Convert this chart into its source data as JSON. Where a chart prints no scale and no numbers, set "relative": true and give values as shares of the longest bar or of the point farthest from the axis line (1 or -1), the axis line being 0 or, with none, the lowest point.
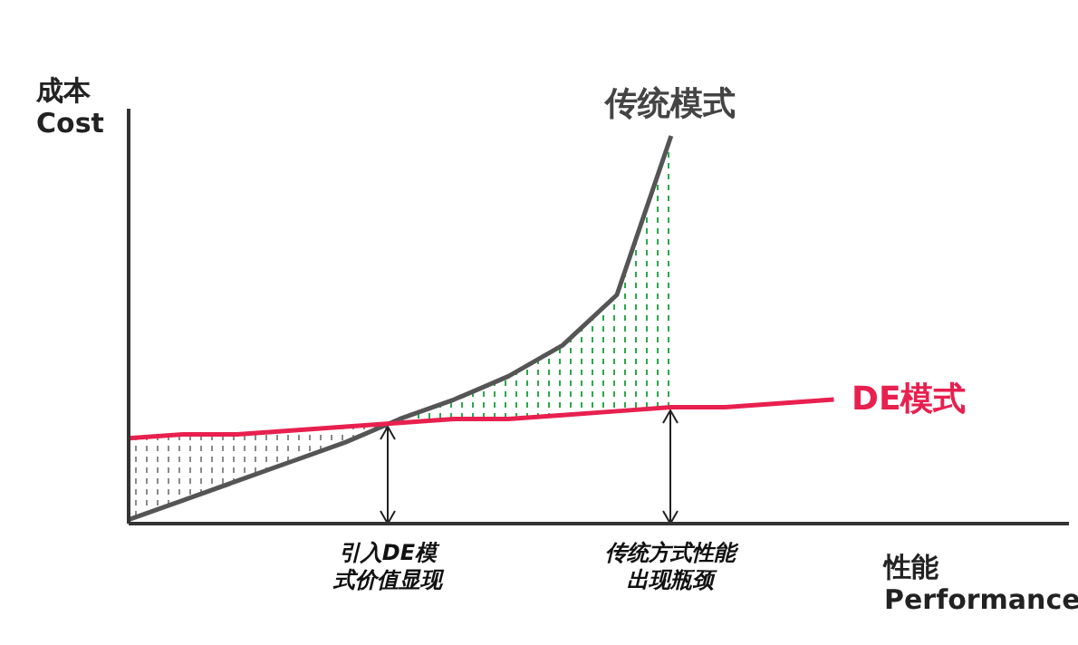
{
  "chart_data": {
    "type": "line",
    "relative": true,
    "xlabel": "性能\nPerformance",
    "ylabel": "成本\nCost",
    "categories": [
      null,
      null,
      null,
      null,
      null,
      null,
      null,
      null,
      null,
      null,
      null,
      null,
      null,
      null
    ],
    "series": [
      {
        "name": "传统模式",
        "color": "#555555",
        "values": [
          0.01,
          0.06,
          0.11,
          0.16,
          0.21,
          0.27,
          0.32,
          0.38,
          0.46,
          0.59,
          1,
          null,
          null,
          null
        ]
      },
      {
        "name": "DE模式",
        "color": "#e8204f",
        "values": [
          0.22,
          0.23,
          0.23,
          0.24,
          0.25,
          0.26,
          0.27,
          0.27,
          0.28,
          0.29,
          0.3,
          0.3,
          0.31,
          0.32
        ],
        "lower": [
          0.01,
          0.06,
          0.11,
          0.16,
          0.21,
          0.26,
          0.27,
          0.27,
          0.28,
          0.29,
          0.3,
          null,
          null,
          null
        ],
        "upper": [
          0.22,
          0.23,
          0.23,
          0.24,
          0.25,
          0.27,
          0.32,
          0.38,
          0.46,
          0.59,
          1,
          null,
          null,
          null
        ]
      }
    ],
    "annotations": [
      "引入DE模式价值显现",
      "传统方式性能出现瓶颈"
    ],
    "marker": "none",
    "line_style": "solid",
    "legend": false,
    "grid": false
  }
}
